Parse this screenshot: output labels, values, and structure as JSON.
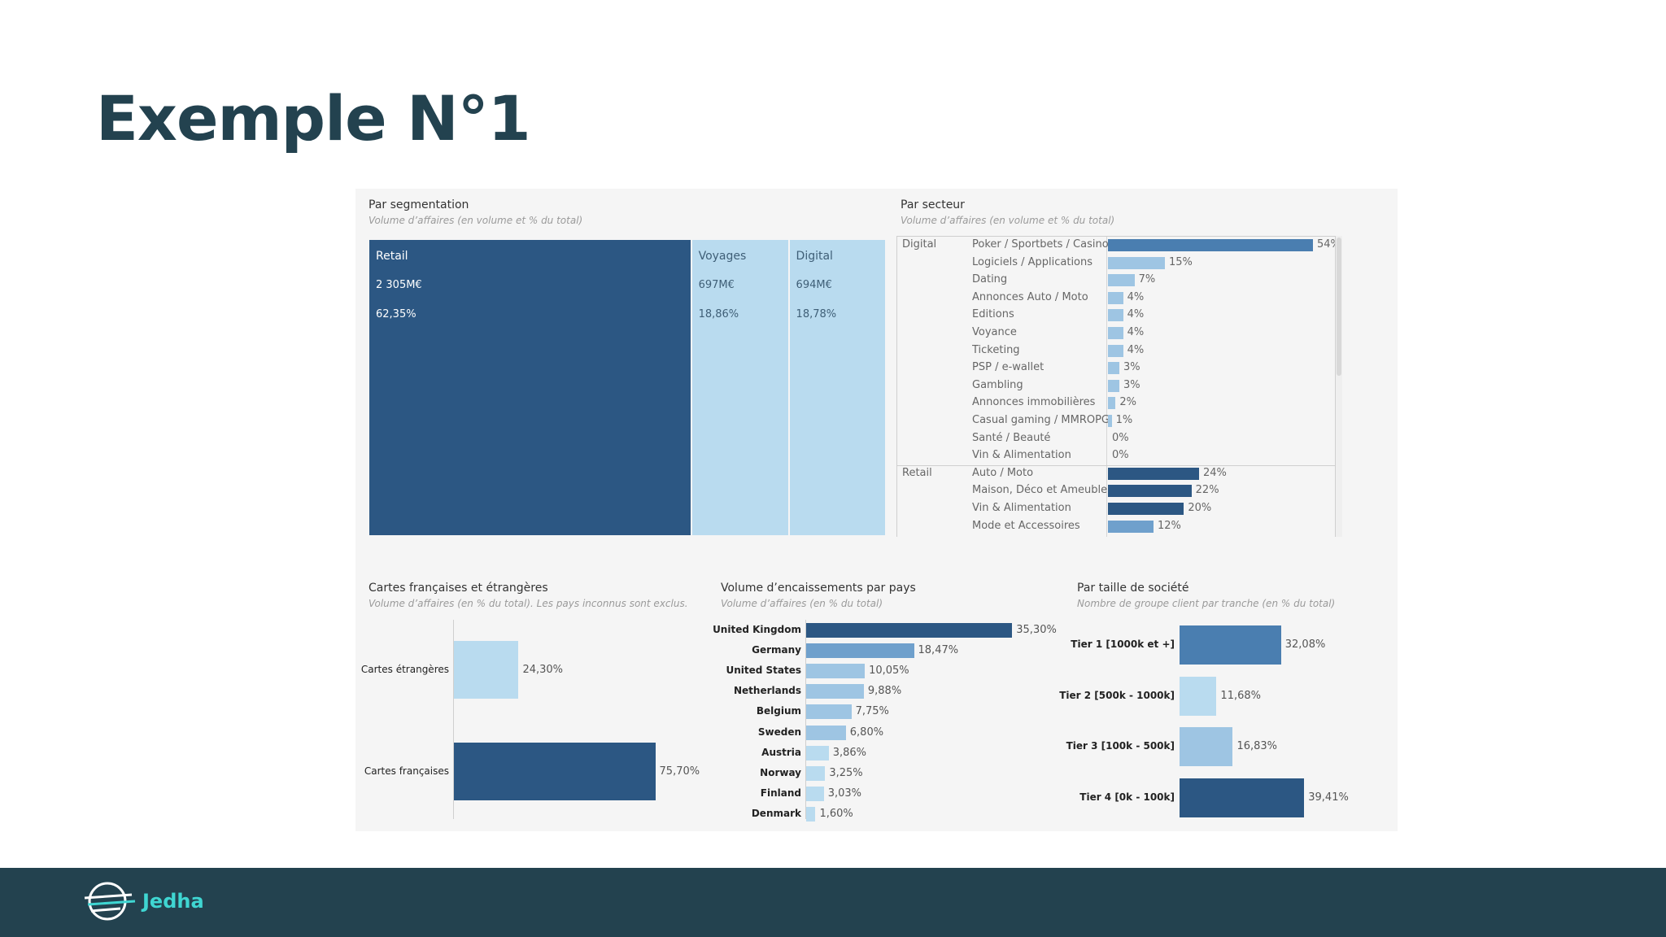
{
  "slide": {
    "title": "Exemple N°1"
  },
  "brand": {
    "name": "Jedha"
  },
  "colors": {
    "dark": "#2c5783",
    "mid": "#4a7eb0",
    "medium": "#6fa0cc",
    "light": "#9ec5e3",
    "pale": "#b9dbef",
    "footer": "#23424f",
    "accent": "#3fd6d2"
  },
  "chart_data": [
    {
      "type": "treemap",
      "title": "Par segmentation",
      "subtitle": "Volume d’affaires (en volume et % du total)",
      "items": [
        {
          "name": "Retail",
          "volume_label": "2 305M€",
          "pct_label": "62,35%",
          "pct": 62.35
        },
        {
          "name": "Voyages",
          "volume_label": "697M€",
          "pct_label": "18,86%",
          "pct": 18.86
        },
        {
          "name": "Digital",
          "volume_label": "694M€",
          "pct_label": "18,78%",
          "pct": 18.78
        }
      ]
    },
    {
      "type": "bar",
      "orientation": "horizontal",
      "title": "Par secteur",
      "subtitle": "Volume d’affaires (en volume et % du total)",
      "xlim": [
        0,
        60
      ],
      "groups": [
        {
          "name": "Digital",
          "rows": [
            {
              "label": "Poker / Sportbets / Casino",
              "value": 54,
              "value_label": "54%"
            },
            {
              "label": "Logiciels / Applications",
              "value": 15,
              "value_label": "15%"
            },
            {
              "label": "Dating",
              "value": 7,
              "value_label": "7%"
            },
            {
              "label": "Annonces Auto / Moto",
              "value": 4,
              "value_label": "4%"
            },
            {
              "label": "Editions",
              "value": 4,
              "value_label": "4%"
            },
            {
              "label": "Voyance",
              "value": 4,
              "value_label": "4%"
            },
            {
              "label": "Ticketing",
              "value": 4,
              "value_label": "4%"
            },
            {
              "label": "PSP / e-wallet",
              "value": 3,
              "value_label": "3%"
            },
            {
              "label": "Gambling",
              "value": 3,
              "value_label": "3%"
            },
            {
              "label": "Annonces immobilières",
              "value": 2,
              "value_label": "2%"
            },
            {
              "label": "Casual gaming / MMROPG..",
              "value": 1,
              "value_label": "1%"
            },
            {
              "label": "Santé / Beauté",
              "value": 0,
              "value_label": "0%"
            },
            {
              "label": "Vin & Alimentation",
              "value": 0,
              "value_label": "0%"
            }
          ]
        },
        {
          "name": "Retail",
          "rows": [
            {
              "label": "Auto / Moto",
              "value": 24,
              "value_label": "24%"
            },
            {
              "label": "Maison, Déco et Ameuble..",
              "value": 22,
              "value_label": "22%"
            },
            {
              "label": "Vin & Alimentation",
              "value": 20,
              "value_label": "20%"
            },
            {
              "label": "Mode et Accessoires",
              "value": 12,
              "value_label": "12%"
            }
          ]
        }
      ]
    },
    {
      "type": "bar",
      "orientation": "horizontal",
      "title": "Cartes françaises et étrangères",
      "subtitle": "Volume d’affaires (en % du total). Les pays inconnus sont exclus.",
      "xlim": [
        0,
        100
      ],
      "categories": [
        "Cartes étrangères",
        "Cartes françaises"
      ],
      "values": [
        24.3,
        75.7
      ],
      "value_labels": [
        "24,30%",
        "75,70%"
      ]
    },
    {
      "type": "bar",
      "orientation": "horizontal",
      "title": "Volume d’encaissements par pays",
      "subtitle": "Volume d’affaires (en % du total)",
      "xlim": [
        0,
        40
      ],
      "categories": [
        "United Kingdom",
        "Germany",
        "United States",
        "Netherlands",
        "Belgium",
        "Sweden",
        "Austria",
        "Norway",
        "Finland",
        "Denmark"
      ],
      "values": [
        35.3,
        18.47,
        10.05,
        9.88,
        7.75,
        6.8,
        3.86,
        3.25,
        3.03,
        1.6
      ],
      "value_labels": [
        "35,30%",
        "18,47%",
        "10,05%",
        "9,88%",
        "7,75%",
        "6,80%",
        "3,86%",
        "3,25%",
        "3,03%",
        "1,60%"
      ]
    },
    {
      "type": "bar",
      "orientation": "horizontal",
      "title": "Par taille de société",
      "subtitle": "Nombre de groupe client par tranche (en % du total)",
      "xlim": [
        0,
        45
      ],
      "categories": [
        "Tier 1 [1000k et +]",
        "Tier 2 [500k - 1000k]",
        "Tier 3 [100k - 500k]",
        "Tier 4 [0k - 100k]"
      ],
      "values": [
        32.08,
        11.68,
        16.83,
        39.41
      ],
      "value_labels": [
        "32,08%",
        "11,68%",
        "16,83%",
        "39,41%"
      ]
    }
  ]
}
